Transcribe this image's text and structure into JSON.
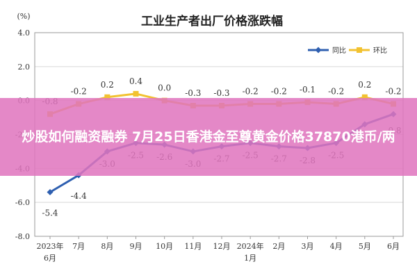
{
  "chart_data": {
    "type": "line",
    "title": "工业生产者出厂价格涨跌幅",
    "unit_label": "(%)",
    "categories": [
      [
        "2023年",
        "6月"
      ],
      [
        "7月"
      ],
      [
        "8月"
      ],
      [
        "9月"
      ],
      [
        "10月"
      ],
      [
        "11月"
      ],
      [
        "12月"
      ],
      [
        "2024年",
        "1月"
      ],
      [
        "2月"
      ],
      [
        "3月"
      ],
      [
        "4月"
      ],
      [
        "5月"
      ],
      [
        "6月"
      ]
    ],
    "ylim": [
      -8.0,
      4.0
    ],
    "yticks": [
      "4.0",
      "2.0",
      "0.0",
      "-2.0",
      "-4.0",
      "-6.0",
      "-8.0"
    ],
    "grid": true,
    "legend_position": "top-right",
    "series": [
      {
        "name": "同比",
        "color": "#2e5fb0",
        "values": [
          -5.4,
          -4.4,
          -3.0,
          -2.5,
          -2.6,
          -3.0,
          -2.7,
          -2.5,
          -2.7,
          -2.8,
          -2.5,
          -1.4,
          -0.8
        ],
        "labels": [
          "-5.4",
          "-4.4",
          "-3.0",
          "-2.5",
          "-2.6",
          "-3.0",
          "-2.7",
          "-2.5",
          "-2.7",
          "-2.8",
          "-2.5",
          "-1.4",
          "-0.8"
        ]
      },
      {
        "name": "环比",
        "color": "#f2c230",
        "values": [
          -0.8,
          -0.2,
          0.2,
          0.4,
          0.0,
          -0.3,
          -0.3,
          -0.2,
          -0.2,
          -0.1,
          -0.2,
          0.2,
          -0.2
        ],
        "labels": [
          "-0.8",
          "-0.2",
          "0.2",
          "0.4",
          "0.0",
          "-0.3",
          "-0.3",
          "-0.2",
          "-0.2",
          "-0.1",
          "-0.2",
          "0.2",
          "-0.2"
        ]
      }
    ]
  },
  "banner": {
    "text": "炒股如何融资融券 7月25日香港金至尊黄金价格37870港币/两",
    "background": "#e075be"
  }
}
